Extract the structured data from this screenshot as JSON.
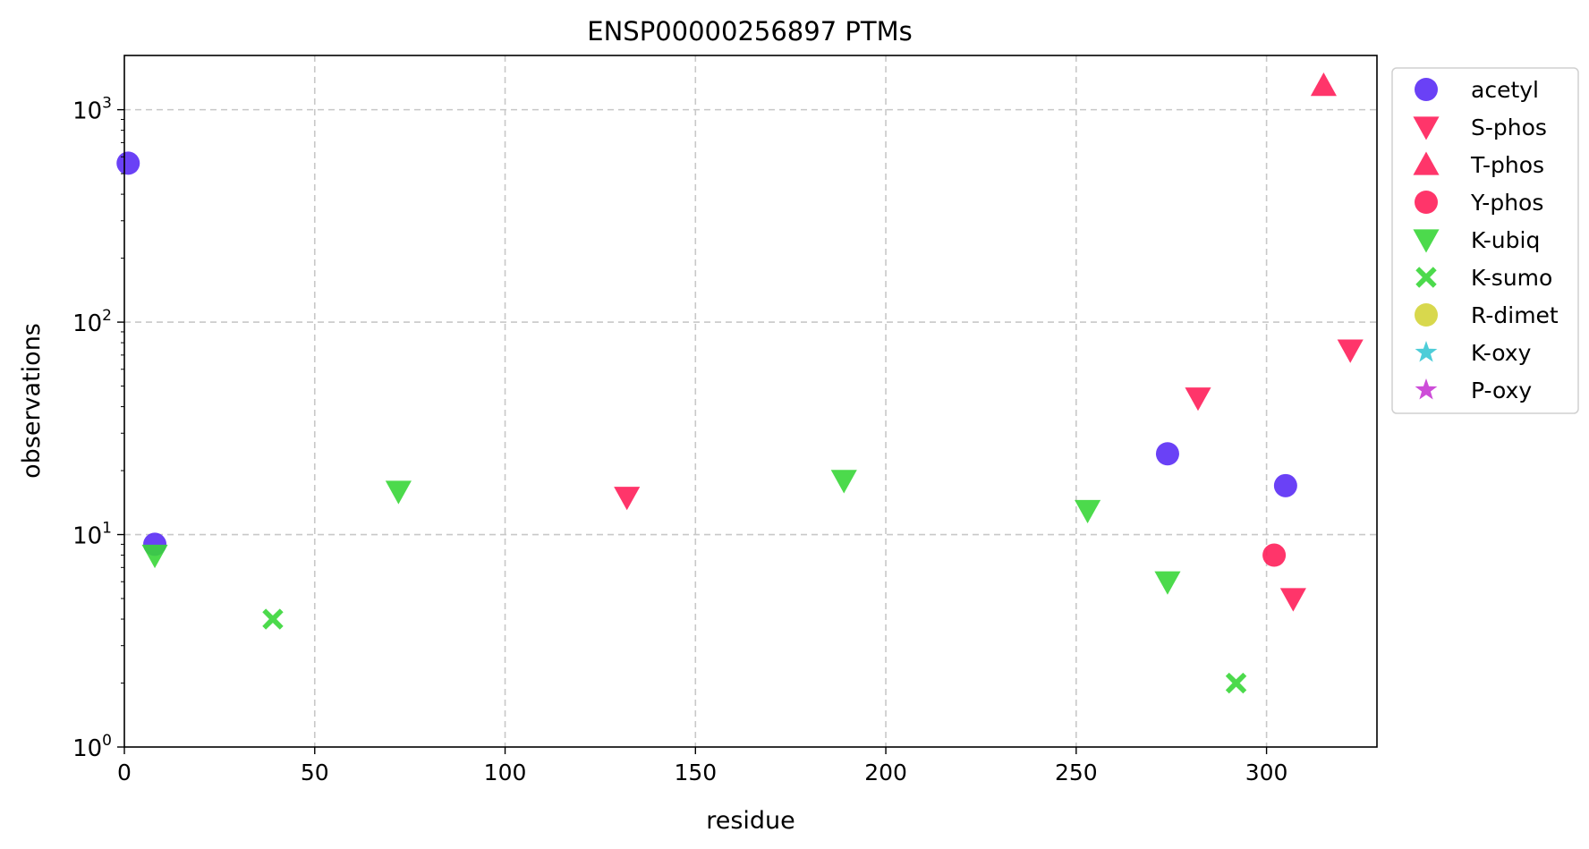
{
  "chart_data": {
    "type": "scatter",
    "title": "ENSP00000256897 PTMs",
    "xlabel": "residue",
    "ylabel": "observations",
    "xlim": [
      0,
      329
    ],
    "ylim": [
      1,
      1800
    ],
    "yscale": "log",
    "grid": true,
    "legend_position": "outside-top-right",
    "x_ticks": [
      0,
      50,
      100,
      150,
      200,
      250,
      300
    ],
    "x_tick_labels": [
      "0",
      "50",
      "100",
      "150",
      "200",
      "250",
      "300"
    ],
    "y_ticks": [
      1,
      10,
      100,
      1000
    ],
    "y_tick_labels": [
      {
        "base": "10",
        "exp": "0"
      },
      {
        "base": "10",
        "exp": "1"
      },
      {
        "base": "10",
        "exp": "2"
      },
      {
        "base": "10",
        "exp": "3"
      }
    ],
    "series": [
      {
        "name": "acetyl",
        "marker": "circle",
        "color": "#5a2cf5",
        "points": [
          {
            "x": 1,
            "y": 560
          },
          {
            "x": 8,
            "y": 9
          },
          {
            "x": 274,
            "y": 24
          },
          {
            "x": 305,
            "y": 17
          }
        ]
      },
      {
        "name": "S-phos",
        "marker": "triangle-down",
        "color": "#ff1f5a",
        "points": [
          {
            "x": 132,
            "y": 15
          },
          {
            "x": 282,
            "y": 44
          },
          {
            "x": 307,
            "y": 5
          },
          {
            "x": 322,
            "y": 74
          }
        ]
      },
      {
        "name": "T-phos",
        "marker": "triangle-up",
        "color": "#ff1f5a",
        "points": [
          {
            "x": 315,
            "y": 1300
          }
        ]
      },
      {
        "name": "Y-phos",
        "marker": "circle",
        "color": "#ff1f5a",
        "points": [
          {
            "x": 302,
            "y": 8
          }
        ]
      },
      {
        "name": "K-ubiq",
        "marker": "triangle-down",
        "color": "#38d638",
        "points": [
          {
            "x": 8,
            "y": 8
          },
          {
            "x": 72,
            "y": 16
          },
          {
            "x": 189,
            "y": 18
          },
          {
            "x": 253,
            "y": 13
          },
          {
            "x": 274,
            "y": 6
          }
        ]
      },
      {
        "name": "K-sumo",
        "marker": "x",
        "color": "#38d638",
        "points": [
          {
            "x": 39,
            "y": 4
          },
          {
            "x": 292,
            "y": 2
          }
        ]
      },
      {
        "name": "R-dimet",
        "marker": "circle",
        "color": "#d4d43a",
        "points": []
      },
      {
        "name": "K-oxy",
        "marker": "star",
        "color": "#3ac8d4",
        "points": []
      },
      {
        "name": "P-oxy",
        "marker": "star",
        "color": "#c83ad4",
        "points": []
      }
    ]
  }
}
